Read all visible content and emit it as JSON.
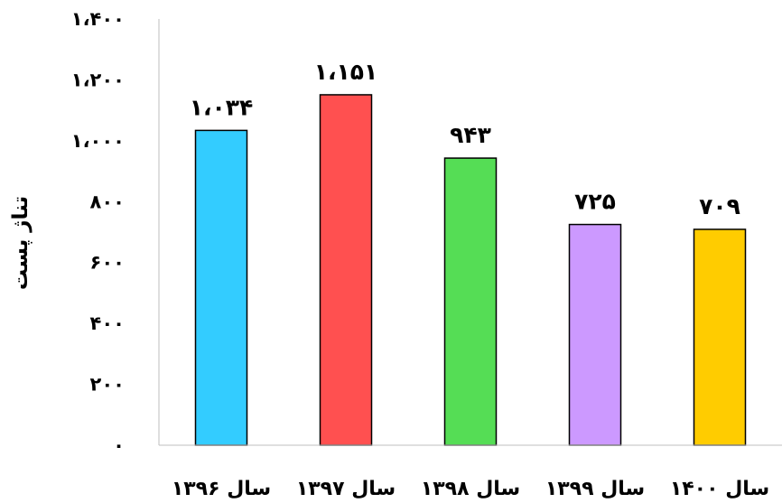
{
  "chart_data": {
    "type": "bar",
    "title": "",
    "xlabel": "",
    "ylabel": "تناژ پست",
    "categories": [
      "سال ۱۳۹۶",
      "سال ۱۳۹۷",
      "سال ۱۳۹۸",
      "سال ۱۳۹۹",
      "سال ۱۴۰۰"
    ],
    "values": [
      1034,
      1151,
      943,
      725,
      709
    ],
    "value_labels": [
      "۱،۰۳۴",
      "۱،۱۵۱",
      "۹۴۳",
      "۷۲۵",
      "۷۰۹"
    ],
    "colors": [
      "#33CCFF",
      "#FF5050",
      "#55DD55",
      "#CC99FF",
      "#FFCC00"
    ],
    "ylim": [
      0,
      1400
    ],
    "yticks": [
      0,
      200,
      400,
      600,
      800,
      1000,
      1200,
      1400
    ],
    "ytick_labels": [
      "۰",
      "۲۰۰",
      "۴۰۰",
      "۶۰۰",
      "۸۰۰",
      "۱،۰۰۰",
      "۱،۲۰۰",
      "۱،۴۰۰"
    ],
    "grid": false,
    "legend": "none"
  }
}
